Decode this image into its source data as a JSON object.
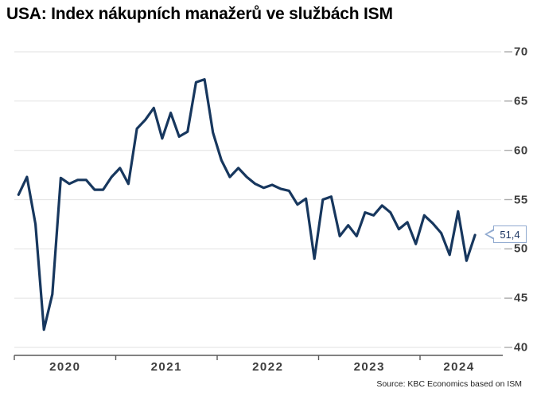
{
  "header": {
    "title": "USA: Index nákupních manažerů ve službách ISM"
  },
  "footer": {
    "source": "Source: KBC Economics based on ISM"
  },
  "colors": {
    "line": "#17375e",
    "grid": "#e6e6e6",
    "axis": "#595959",
    "y_dash": "#ababab",
    "tick_label": "#3d3d3d",
    "callout_border": "#8fa9cf",
    "callout_text": "#1f3864"
  },
  "chart_data": {
    "type": "line",
    "title": "USA: Index nákupních manažerů ve službách ISM",
    "frequency": "monthly",
    "x_start": "2020-01",
    "x_end": "2024-07",
    "values": [
      55.5,
      57.3,
      52.5,
      41.8,
      45.4,
      57.2,
      56.6,
      57.0,
      57.0,
      56.0,
      56.0,
      57.3,
      58.2,
      56.6,
      62.2,
      63.1,
      64.3,
      61.2,
      63.8,
      61.4,
      61.9,
      66.9,
      67.2,
      61.8,
      59.0,
      57.3,
      58.2,
      57.3,
      56.6,
      56.2,
      56.5,
      56.1,
      55.9,
      54.5,
      55.1,
      49.0,
      55.0,
      55.3,
      51.3,
      52.4,
      51.3,
      53.7,
      53.4,
      54.4,
      53.7,
      52.0,
      52.7,
      50.5,
      53.4,
      52.6,
      51.6,
      49.4,
      53.8,
      48.8,
      51.4
    ],
    "x_tick_labels": [
      "2020",
      "2021",
      "2022",
      "2023",
      "2024"
    ],
    "y_ticks": [
      40,
      45,
      50,
      55,
      60,
      65,
      70
    ],
    "ylim": [
      40,
      70
    ],
    "grid": "horizontal",
    "legend": "none",
    "last_value_label": "51,4",
    "last_value": 51.4
  }
}
